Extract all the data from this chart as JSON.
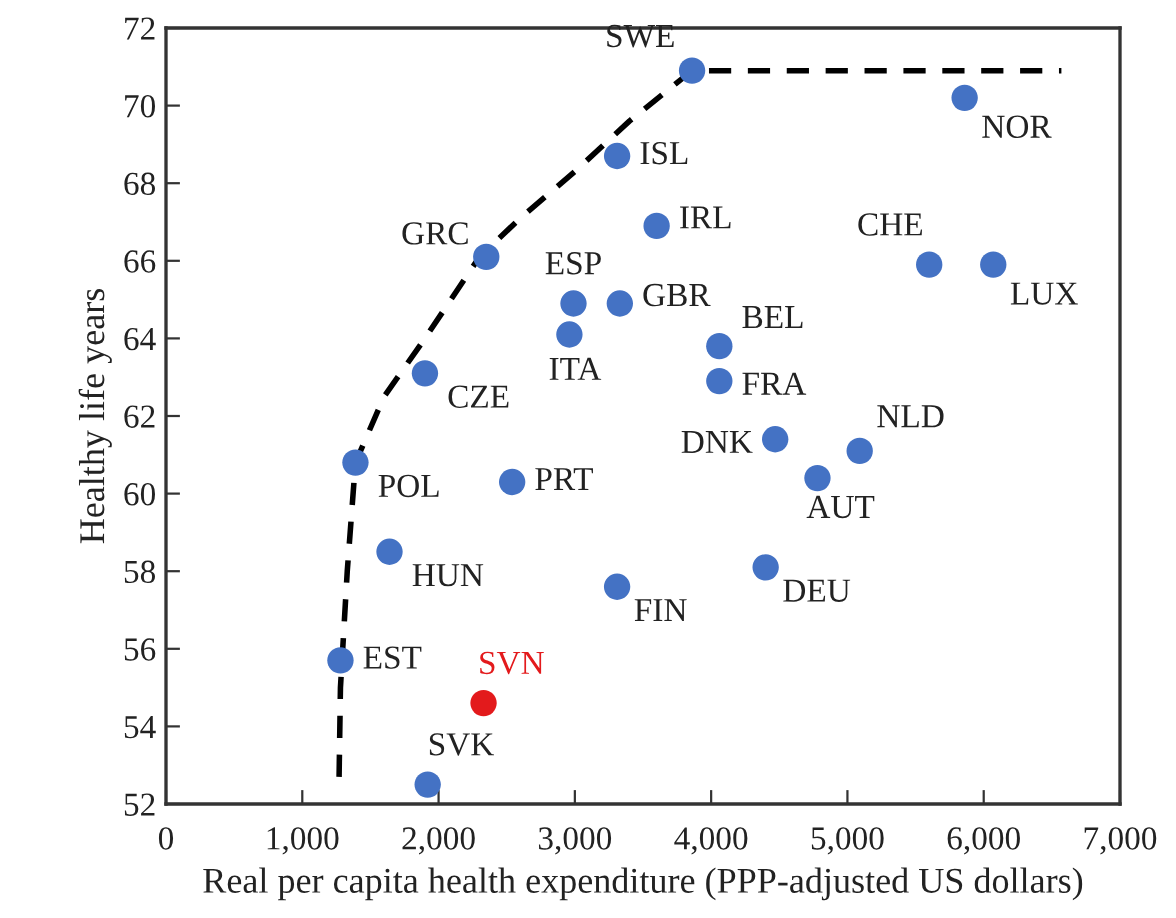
{
  "chart_data": {
    "type": "scatter",
    "xlabel": "Real per capita health expenditure (PPP-adjusted US dollars)",
    "ylabel": "Healthy life years",
    "xlim": [
      0,
      7000
    ],
    "xticks": [
      {
        "value": 0,
        "label": "0"
      },
      {
        "value": 1000,
        "label": "1,000"
      },
      {
        "value": 2000,
        "label": "2,000"
      },
      {
        "value": 3000,
        "label": "3,000"
      },
      {
        "value": 4000,
        "label": "4,000"
      },
      {
        "value": 5000,
        "label": "5,000"
      },
      {
        "value": 6000,
        "label": "6,000"
      },
      {
        "value": 7000,
        "label": "7,000"
      }
    ],
    "ylim": [
      52,
      72
    ],
    "yticks": [
      52,
      54,
      56,
      58,
      60,
      62,
      64,
      66,
      68,
      70,
      72
    ],
    "grid": false,
    "legend": false,
    "marker": "circle",
    "series": [
      {
        "color": "#4472c4",
        "x": [
          3860,
          5860,
          3310,
          3600,
          5600,
          6070,
          3330,
          4060,
          4060,
          5090,
          4470,
          4780,
          4400,
          3310,
          2350,
          2990,
          2960,
          1900,
          1390,
          2540,
          1640,
          1280,
          1920
        ],
        "values": [
          70.9,
          70.2,
          68.7,
          66.9,
          65.9,
          65.9,
          64.9,
          63.8,
          62.9,
          61.1,
          61.4,
          60.4,
          58.1,
          57.6,
          66.1,
          64.9,
          64.1,
          63.1,
          60.8,
          60.3,
          58.5,
          55.7,
          52.5
        ]
      },
      {
        "color": "#e31a1c",
        "x": [
          2330
        ],
        "values": [
          54.6
        ]
      },
      {
        "type": "line",
        "color": "#000000",
        "line_style": "dashed",
        "marker": "none",
        "x": [
          1270,
          1280,
          1330,
          1390,
          1600,
          1900,
          2300,
          2600,
          3000,
          3400,
          3860,
          6570
        ],
        "values": [
          52.7,
          55.0,
          58.0,
          60.8,
          62.5,
          64.0,
          66.1,
          67.1,
          68.3,
          69.6,
          70.9,
          70.9
        ]
      }
    ],
    "annotations": [
      {
        "text": "SWE",
        "x": 3860,
        "y": 70.9
      },
      {
        "text": "NOR",
        "x": 5860,
        "y": 70.2
      },
      {
        "text": "ISL",
        "x": 3310,
        "y": 68.7
      },
      {
        "text": "IRL",
        "x": 3600,
        "y": 66.9
      },
      {
        "text": "CHE",
        "x": 5600,
        "y": 65.9
      },
      {
        "text": "LUX",
        "x": 6070,
        "y": 65.9
      },
      {
        "text": "GBR",
        "x": 3330,
        "y": 64.9
      },
      {
        "text": "BEL",
        "x": 4060,
        "y": 63.8
      },
      {
        "text": "FRA",
        "x": 4060,
        "y": 62.9
      },
      {
        "text": "NLD",
        "x": 5090,
        "y": 61.1
      },
      {
        "text": "DNK",
        "x": 4470,
        "y": 61.4
      },
      {
        "text": "AUT",
        "x": 4780,
        "y": 60.4
      },
      {
        "text": "DEU",
        "x": 4400,
        "y": 58.1
      },
      {
        "text": "FIN",
        "x": 3310,
        "y": 57.6
      },
      {
        "text": "GRC",
        "x": 2350,
        "y": 66.1
      },
      {
        "text": "ESP",
        "x": 2990,
        "y": 64.9
      },
      {
        "text": "ITA",
        "x": 2960,
        "y": 64.1
      },
      {
        "text": "CZE",
        "x": 1900,
        "y": 63.1
      },
      {
        "text": "POL",
        "x": 1390,
        "y": 60.8
      },
      {
        "text": "PRT",
        "x": 2540,
        "y": 60.3
      },
      {
        "text": "HUN",
        "x": 1640,
        "y": 58.5
      },
      {
        "text": "EST",
        "x": 1280,
        "y": 55.7
      },
      {
        "text": "SVN",
        "x": 2330,
        "y": 54.6
      },
      {
        "text": "SVK",
        "x": 1920,
        "y": 52.5
      }
    ]
  }
}
